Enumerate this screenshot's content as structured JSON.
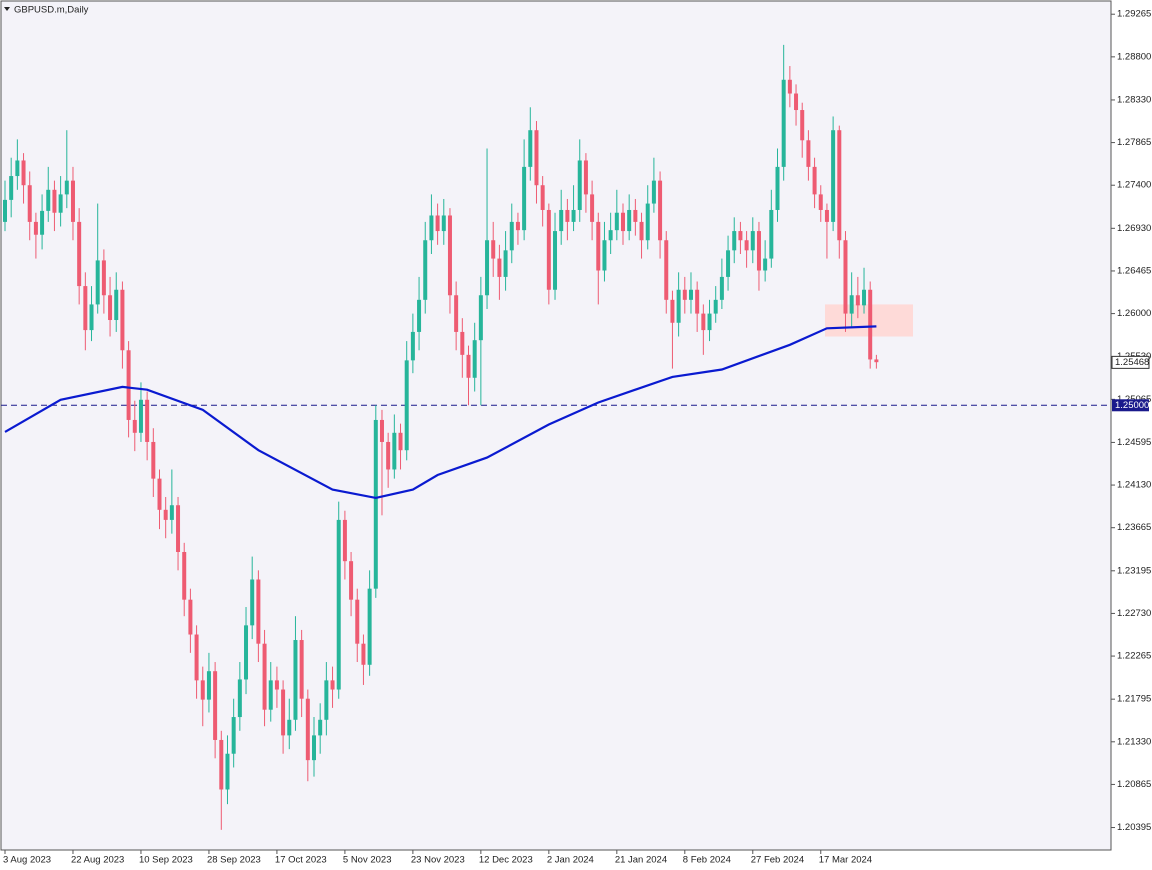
{
  "chart_data": {
    "type": "candlestick",
    "title": "GBPUSD.m,Daily",
    "bull_color": "#26b59a",
    "bear_color": "#ee5b72",
    "ylim": [
      1.2015,
      1.2942
    ],
    "yticks": [
      1.29265,
      {
        "value": 1.288,
        "label": "1.28800"
      },
      {
        "value": 1.2833,
        "label": "1.28330"
      },
      1.27865,
      {
        "value": 1.274,
        "label": "1.27400"
      },
      {
        "value": 1.2693,
        "label": "1.26930"
      },
      1.26465,
      {
        "value": 1.26,
        "label": "1.26000"
      },
      {
        "value": 1.2553,
        "label": "1.25530"
      },
      1.25065,
      1.24595,
      {
        "value": 1.2413,
        "label": "1.24130"
      },
      1.23665,
      1.23195,
      {
        "value": 1.2273,
        "label": "1.22730"
      },
      1.22265,
      1.21795,
      {
        "value": 1.2133,
        "label": "1.21330"
      },
      1.20865,
      1.20395
    ],
    "categories": [
      "3 Aug 2023",
      null,
      null,
      null,
      null,
      null,
      null,
      null,
      null,
      null,
      null,
      "22 Aug 2023",
      null,
      null,
      null,
      null,
      null,
      null,
      null,
      null,
      null,
      null,
      "10 Sep 2023",
      null,
      null,
      null,
      null,
      null,
      null,
      null,
      null,
      null,
      null,
      "28 Sep 2023",
      null,
      null,
      null,
      null,
      null,
      null,
      null,
      null,
      null,
      null,
      "17 Oct 2023",
      null,
      null,
      null,
      null,
      null,
      null,
      null,
      null,
      null,
      null,
      "5 Nov 2023",
      null,
      null,
      null,
      null,
      null,
      null,
      null,
      null,
      null,
      null,
      "23 Nov 2023",
      null,
      null,
      null,
      null,
      null,
      null,
      null,
      null,
      null,
      null,
      "12 Dec 2023",
      null,
      null,
      null,
      null,
      null,
      null,
      null,
      null,
      null,
      null,
      "2 Jan 2024",
      null,
      null,
      null,
      null,
      null,
      null,
      null,
      null,
      null,
      null,
      "21 Jan 2024",
      null,
      null,
      null,
      null,
      null,
      null,
      null,
      null,
      null,
      null,
      "8 Feb 2024",
      null,
      null,
      null,
      null,
      null,
      null,
      null,
      null,
      null,
      null,
      "27 Feb 2024",
      null,
      null,
      null,
      null,
      null,
      null,
      null,
      null,
      null,
      null,
      "17 Mar 2024",
      null,
      null,
      null,
      null,
      null,
      null,
      null,
      null,
      null
    ],
    "candles": [
      [
        1.27,
        1.2745,
        1.269,
        1.2724
      ],
      [
        1.2724,
        1.277,
        1.2705,
        1.275
      ],
      [
        1.275,
        1.279,
        1.2735,
        1.2767
      ],
      [
        1.2767,
        1.2775,
        1.272,
        1.274
      ],
      [
        1.274,
        1.2755,
        1.268,
        1.27
      ],
      [
        1.27,
        1.271,
        1.266,
        1.2686
      ],
      [
        1.2686,
        1.273,
        1.267,
        1.2712
      ],
      [
        1.2712,
        1.276,
        1.27,
        1.2735
      ],
      [
        1.2735,
        1.2745,
        1.269,
        1.271
      ],
      [
        1.271,
        1.275,
        1.2695,
        1.273
      ],
      [
        1.273,
        1.28,
        1.2715,
        1.2745
      ],
      [
        1.2745,
        1.276,
        1.268,
        1.27
      ],
      [
        1.27,
        1.2715,
        1.261,
        1.263
      ],
      [
        1.263,
        1.2645,
        1.256,
        1.2582
      ],
      [
        1.2582,
        1.263,
        1.257,
        1.261
      ],
      [
        1.261,
        1.272,
        1.26,
        1.2658
      ],
      [
        1.2658,
        1.267,
        1.26,
        1.262
      ],
      [
        1.262,
        1.264,
        1.2575,
        1.2593
      ],
      [
        1.2593,
        1.2645,
        1.258,
        1.2626
      ],
      [
        1.2626,
        1.2635,
        1.254,
        1.256
      ],
      [
        1.256,
        1.257,
        1.2465,
        1.2484
      ],
      [
        1.2484,
        1.2505,
        1.245,
        1.247
      ],
      [
        1.247,
        1.2525,
        1.246,
        1.2506
      ],
      [
        1.2506,
        1.2515,
        1.244,
        1.246
      ],
      [
        1.246,
        1.2475,
        1.24,
        1.242
      ],
      [
        1.242,
        1.243,
        1.2365,
        1.2386
      ],
      [
        1.2386,
        1.24,
        1.2355,
        1.2375
      ],
      [
        1.2375,
        1.243,
        1.236,
        1.2391
      ],
      [
        1.2391,
        1.24,
        1.232,
        1.234
      ],
      [
        1.234,
        1.235,
        1.227,
        1.2288
      ],
      [
        1.2288,
        1.23,
        1.223,
        1.225
      ],
      [
        1.225,
        1.226,
        1.218,
        1.22
      ],
      [
        1.22,
        1.2215,
        1.215,
        1.2179
      ],
      [
        1.2179,
        1.223,
        1.2165,
        1.221
      ],
      [
        1.221,
        1.222,
        1.2115,
        1.2135
      ],
      [
        1.2135,
        1.2145,
        1.2037,
        1.2081
      ],
      [
        1.2081,
        1.214,
        1.2065,
        1.212
      ],
      [
        1.212,
        1.218,
        1.2105,
        1.216
      ],
      [
        1.216,
        1.222,
        1.2145,
        1.2201
      ],
      [
        1.2201,
        1.228,
        1.2185,
        1.226
      ],
      [
        1.226,
        1.2335,
        1.2245,
        1.231
      ],
      [
        1.231,
        1.232,
        1.222,
        1.224
      ],
      [
        1.224,
        1.2255,
        1.215,
        1.2168
      ],
      [
        1.2168,
        1.222,
        1.2155,
        1.22
      ],
      [
        1.22,
        1.2215,
        1.217,
        1.219
      ],
      [
        1.219,
        1.22,
        1.212,
        1.214
      ],
      [
        1.214,
        1.218,
        1.2125,
        1.2157
      ],
      [
        1.2157,
        1.227,
        1.2145,
        1.2244
      ],
      [
        1.2244,
        1.2255,
        1.216,
        1.218
      ],
      [
        1.218,
        1.219,
        1.209,
        1.2113
      ],
      [
        1.2113,
        1.216,
        1.2095,
        1.214
      ],
      [
        1.214,
        1.2175,
        1.212,
        1.2157
      ],
      [
        1.2157,
        1.222,
        1.214,
        1.22
      ],
      [
        1.22,
        1.2215,
        1.217,
        1.219
      ],
      [
        1.219,
        1.2395,
        1.218,
        1.2375
      ],
      [
        1.2375,
        1.2385,
        1.231,
        1.233
      ],
      [
        1.233,
        1.234,
        1.227,
        1.2288
      ],
      [
        1.2288,
        1.23,
        1.222,
        1.224
      ],
      [
        1.224,
        1.225,
        1.2195,
        1.2217
      ],
      [
        1.2217,
        1.232,
        1.2205,
        1.23
      ],
      [
        1.23,
        1.25,
        1.229,
        1.2484
      ],
      [
        1.2484,
        1.2495,
        1.238,
        1.246
      ],
      [
        1.246,
        1.247,
        1.241,
        1.243
      ],
      [
        1.243,
        1.249,
        1.242,
        1.247
      ],
      [
        1.247,
        1.248,
        1.243,
        1.2451
      ],
      [
        1.2451,
        1.257,
        1.244,
        1.2549
      ],
      [
        1.2549,
        1.26,
        1.2535,
        1.258
      ],
      [
        1.258,
        1.264,
        1.256,
        1.2615
      ],
      [
        1.2615,
        1.27,
        1.26,
        1.268
      ],
      [
        1.268,
        1.273,
        1.2665,
        1.2707
      ],
      [
        1.2707,
        1.272,
        1.2675,
        1.269
      ],
      [
        1.269,
        1.2725,
        1.2675,
        1.2707
      ],
      [
        1.2707,
        1.2715,
        1.26,
        1.262
      ],
      [
        1.262,
        1.2635,
        1.256,
        1.258
      ],
      [
        1.258,
        1.2595,
        1.253,
        1.2555
      ],
      [
        1.2555,
        1.2565,
        1.25,
        1.253
      ],
      [
        1.253,
        1.259,
        1.2515,
        1.2571
      ],
      [
        1.2571,
        1.264,
        1.25,
        1.262
      ],
      [
        1.262,
        1.278,
        1.2605,
        1.268
      ],
      [
        1.268,
        1.27,
        1.264,
        1.266
      ],
      [
        1.266,
        1.2675,
        1.2615,
        1.264
      ],
      [
        1.264,
        1.269,
        1.2625,
        1.2669
      ],
      [
        1.2669,
        1.272,
        1.2655,
        1.27
      ],
      [
        1.27,
        1.271,
        1.2675,
        1.2691
      ],
      [
        1.2691,
        1.279,
        1.268,
        1.276
      ],
      [
        1.276,
        1.2825,
        1.2745,
        1.28
      ],
      [
        1.28,
        1.281,
        1.272,
        1.274
      ],
      [
        1.274,
        1.275,
        1.2695,
        1.2713
      ],
      [
        1.2713,
        1.272,
        1.261,
        1.2626
      ],
      [
        1.2626,
        1.271,
        1.2615,
        1.269
      ],
      [
        1.269,
        1.2735,
        1.2675,
        1.2713
      ],
      [
        1.2713,
        1.2725,
        1.268,
        1.27
      ],
      [
        1.27,
        1.274,
        1.269,
        1.2713
      ],
      [
        1.2713,
        1.279,
        1.27,
        1.2767
      ],
      [
        1.2767,
        1.2775,
        1.271,
        1.273
      ],
      [
        1.273,
        1.2745,
        1.268,
        1.27
      ],
      [
        1.27,
        1.271,
        1.261,
        1.2647
      ],
      [
        1.2647,
        1.27,
        1.2635,
        1.268
      ],
      [
        1.268,
        1.271,
        1.2665,
        1.2691
      ],
      [
        1.2691,
        1.2735,
        1.268,
        1.271
      ],
      [
        1.271,
        1.272,
        1.2675,
        1.269
      ],
      [
        1.269,
        1.273,
        1.268,
        1.2713
      ],
      [
        1.2713,
        1.2725,
        1.2685,
        1.27
      ],
      [
        1.27,
        1.271,
        1.266,
        1.268
      ],
      [
        1.268,
        1.274,
        1.267,
        1.272
      ],
      [
        1.272,
        1.277,
        1.271,
        1.2745
      ],
      [
        1.2745,
        1.2755,
        1.266,
        1.268
      ],
      [
        1.268,
        1.269,
        1.26,
        1.2615
      ],
      [
        1.2615,
        1.2625,
        1.254,
        1.259
      ],
      [
        1.259,
        1.2645,
        1.2575,
        1.2626
      ],
      [
        1.2626,
        1.264,
        1.26,
        1.2615
      ],
      [
        1.2615,
        1.2645,
        1.26,
        1.2626
      ],
      [
        1.2626,
        1.2635,
        1.258,
        1.26
      ],
      [
        1.26,
        1.261,
        1.2555,
        1.2582
      ],
      [
        1.2582,
        1.2615,
        1.257,
        1.26
      ],
      [
        1.26,
        1.263,
        1.259,
        1.2615
      ],
      [
        1.2615,
        1.266,
        1.2605,
        1.264
      ],
      [
        1.264,
        1.2685,
        1.2625,
        1.2669
      ],
      [
        1.2669,
        1.2705,
        1.2655,
        1.269
      ],
      [
        1.269,
        1.27,
        1.2665,
        1.268
      ],
      [
        1.268,
        1.269,
        1.265,
        1.2669
      ],
      [
        1.2669,
        1.2705,
        1.2655,
        1.269
      ],
      [
        1.269,
        1.27,
        1.2625,
        1.2647
      ],
      [
        1.2647,
        1.268,
        1.2635,
        1.266
      ],
      [
        1.266,
        1.2735,
        1.265,
        1.2713
      ],
      [
        1.2713,
        1.278,
        1.27,
        1.276
      ],
      [
        1.276,
        1.2893,
        1.2745,
        1.2855
      ],
      [
        1.2855,
        1.287,
        1.2825,
        1.284
      ],
      [
        1.284,
        1.285,
        1.2805,
        1.2822
      ],
      [
        1.2822,
        1.283,
        1.277,
        1.2789
      ],
      [
        1.2789,
        1.28,
        1.2745,
        1.276
      ],
      [
        1.276,
        1.277,
        1.2715,
        1.273
      ],
      [
        1.273,
        1.274,
        1.27,
        1.2713
      ],
      [
        1.2713,
        1.272,
        1.266,
        1.27
      ],
      [
        1.27,
        1.2815,
        1.269,
        1.28
      ],
      [
        1.28,
        1.2805,
        1.266,
        1.268
      ],
      [
        1.268,
        1.269,
        1.258,
        1.26
      ],
      [
        1.26,
        1.2645,
        1.2585,
        1.262
      ],
      [
        1.262,
        1.264,
        1.2595,
        1.2609
      ],
      [
        1.2609,
        1.265,
        1.26,
        1.2626
      ],
      [
        1.2626,
        1.2635,
        1.254,
        1.255
      ],
      [
        1.255,
        1.2555,
        1.254,
        1.2547
      ]
    ],
    "ma": {
      "color": "#0a1ad0",
      "x": [
        0,
        9,
        19,
        23,
        32,
        41,
        53,
        60,
        66,
        70,
        78,
        88,
        96,
        108,
        116,
        127,
        133,
        141
      ],
      "values": [
        1.2471,
        1.2506,
        1.252,
        1.2517,
        1.2495,
        1.2451,
        1.2408,
        1.2399,
        1.2408,
        1.2424,
        1.2443,
        1.2479,
        1.2503,
        1.2531,
        1.2539,
        1.2566,
        1.2584,
        1.2586
      ]
    },
    "hline": {
      "value": 1.25,
      "label": "1.25000",
      "color": "#1a1a8c"
    },
    "last_price": 1.25468,
    "zone": {
      "ylim": [
        1.2575,
        1.261
      ],
      "color": "#ffd5d2"
    }
  }
}
